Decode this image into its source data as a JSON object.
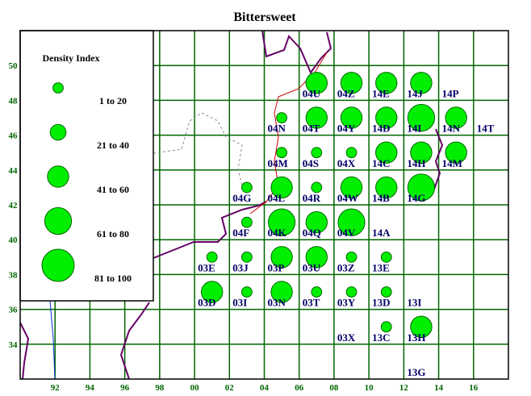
{
  "title": "Bittersweet",
  "legend": {
    "title": "Density Index",
    "entries": [
      "1 to 20",
      "21 to 40",
      "41 to 60",
      "61 to 80",
      "81 to 100"
    ]
  },
  "xlim": [
    90,
    118
  ],
  "ylim": [
    32,
    52
  ],
  "xticks": [
    92,
    94,
    96,
    98,
    {
      "value": 100,
      "label": "00"
    },
    {
      "value": 102,
      "label": "02"
    },
    {
      "value": 104,
      "label": "04"
    },
    {
      "value": 106,
      "label": "06"
    },
    {
      "value": 108,
      "label": "08"
    },
    {
      "value": 110,
      "label": "10"
    },
    {
      "value": 112,
      "label": "12"
    },
    {
      "value": 114,
      "label": "14"
    },
    {
      "value": 116,
      "label": "16"
    }
  ],
  "yticks": [
    34,
    36,
    38,
    40,
    42,
    44,
    46,
    48,
    50
  ],
  "cells": [
    {
      "label": "04U",
      "x": 107,
      "y": 49,
      "class": 3
    },
    {
      "label": "04Z",
      "x": 109,
      "y": 49,
      "class": 3
    },
    {
      "label": "14E",
      "x": 111,
      "y": 49,
      "class": 3
    },
    {
      "label": "14J",
      "x": 113,
      "y": 49,
      "class": 3
    },
    {
      "label": "14P",
      "x": 115,
      "y": 49
    },
    {
      "label": "04N",
      "x": 105,
      "y": 47,
      "class": 1
    },
    {
      "label": "04T",
      "x": 107,
      "y": 47,
      "class": 3
    },
    {
      "label": "04Y",
      "x": 109,
      "y": 47,
      "class": 3
    },
    {
      "label": "14D",
      "x": 111,
      "y": 47,
      "class": 3
    },
    {
      "label": "14I",
      "x": 113,
      "y": 47,
      "class": 4
    },
    {
      "label": "14N",
      "x": 115,
      "y": 47,
      "class": 3
    },
    {
      "label": "14T",
      "x": 117,
      "y": 47
    },
    {
      "label": "04M",
      "x": 105,
      "y": 45,
      "class": 1
    },
    {
      "label": "04S",
      "x": 107,
      "y": 45,
      "class": 1
    },
    {
      "label": "04X",
      "x": 109,
      "y": 45,
      "class": 1
    },
    {
      "label": "14C",
      "x": 111,
      "y": 45,
      "class": 3
    },
    {
      "label": "14H",
      "x": 113,
      "y": 45,
      "class": 3
    },
    {
      "label": "14M",
      "x": 115,
      "y": 45,
      "class": 3
    },
    {
      "label": "04G",
      "x": 103,
      "y": 43,
      "class": 1
    },
    {
      "label": "04L",
      "x": 105,
      "y": 43,
      "class": 3
    },
    {
      "label": "04R",
      "x": 107,
      "y": 43,
      "class": 1
    },
    {
      "label": "04W",
      "x": 109,
      "y": 43,
      "class": 3
    },
    {
      "label": "14B",
      "x": 111,
      "y": 43,
      "class": 3
    },
    {
      "label": "14G",
      "x": 113,
      "y": 43,
      "class": 4
    },
    {
      "label": "04F",
      "x": 103,
      "y": 41,
      "class": 1
    },
    {
      "label": "04K",
      "x": 105,
      "y": 41,
      "class": 4
    },
    {
      "label": "04Q",
      "x": 107,
      "y": 41,
      "class": 3
    },
    {
      "label": "04V",
      "x": 109,
      "y": 41,
      "class": 4
    },
    {
      "label": "14A",
      "x": 111,
      "y": 41
    },
    {
      "label": "03E",
      "x": 101,
      "y": 39,
      "class": 1
    },
    {
      "label": "03J",
      "x": 103,
      "y": 39,
      "class": 1
    },
    {
      "label": "03P",
      "x": 105,
      "y": 39,
      "class": 3
    },
    {
      "label": "03U",
      "x": 107,
      "y": 39,
      "class": 3
    },
    {
      "label": "03Z",
      "x": 109,
      "y": 39,
      "class": 1
    },
    {
      "label": "13E",
      "x": 111,
      "y": 39,
      "class": 1
    },
    {
      "label": "03D",
      "x": 101,
      "y": 37,
      "class": 3
    },
    {
      "label": "03I",
      "x": 103,
      "y": 37,
      "class": 1
    },
    {
      "label": "03N",
      "x": 105,
      "y": 37,
      "class": 3
    },
    {
      "label": "03T",
      "x": 107,
      "y": 37,
      "class": 1
    },
    {
      "label": "03Y",
      "x": 109,
      "y": 37,
      "class": 1
    },
    {
      "label": "13D",
      "x": 111,
      "y": 37,
      "class": 1
    },
    {
      "label": "13I",
      "x": 113,
      "y": 37
    },
    {
      "label": "03X",
      "x": 109,
      "y": 35
    },
    {
      "label": "13C",
      "x": 111,
      "y": 35,
      "class": 1
    },
    {
      "label": "13H",
      "x": 113,
      "y": 35,
      "class": 3
    },
    {
      "label": "13G",
      "x": 113,
      "y": 33
    }
  ]
}
